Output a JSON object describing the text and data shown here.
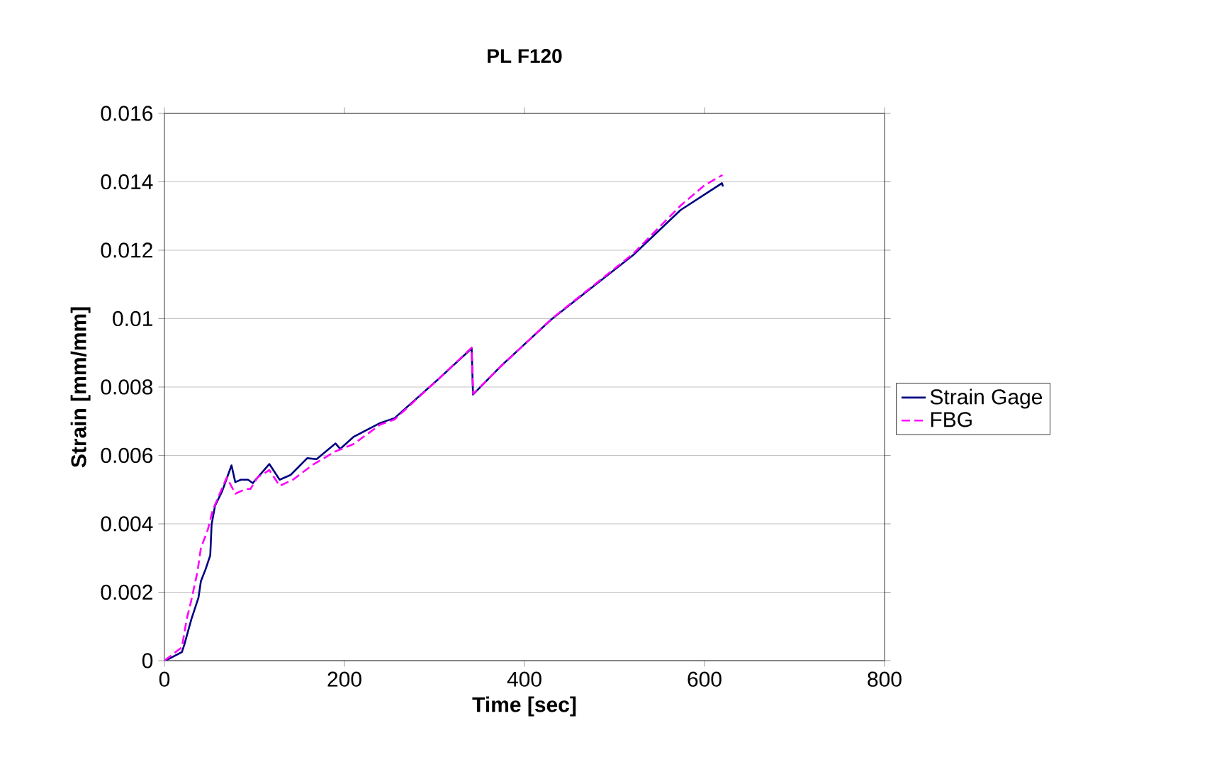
{
  "chart_data": {
    "type": "line",
    "title": "PL F120",
    "xlabel": "Time [sec]",
    "ylabel": "Strain [mm/mm]",
    "xlim": [
      0,
      800
    ],
    "ylim": [
      0,
      0.016
    ],
    "xticks": [
      0,
      200,
      400,
      600,
      800
    ],
    "yticks": [
      0,
      0.002,
      0.004,
      0.006,
      0.008,
      0.01,
      0.012,
      0.014,
      0.016
    ],
    "grid": "y",
    "legend": "right",
    "marker": "none",
    "series": [
      {
        "name": "Strain Gage",
        "color": "#000080",
        "line_style": "solid",
        "x": [
          0,
          1.1,
          19.4,
          22,
          29.9,
          37.8,
          40.5,
          45.7,
          50.9,
          52.4,
          56.2,
          64.1,
          74.5,
          78.7,
          85,
          92.9,
          98.1,
          116.5,
          128,
          140.2,
          158.6,
          169,
          190.1,
          195.3,
          209.9,
          239.8,
          255.6,
          305.5,
          341.3,
          342.8,
          373.7,
          430.4,
          520.8,
          573.2,
          619.4,
          620.5
        ],
        "values": [
          0,
          0,
          0.00025,
          0.00046,
          0.00121,
          0.00184,
          0.00232,
          0.00267,
          0.00308,
          0.00398,
          0.00453,
          0.00495,
          0.00571,
          0.00522,
          0.00529,
          0.00529,
          0.00519,
          0.00575,
          0.00529,
          0.00543,
          0.00592,
          0.00589,
          0.00635,
          0.00619,
          0.00654,
          0.00695,
          0.00709,
          0.00826,
          0.00913,
          0.00778,
          0.00861,
          0.00999,
          0.01186,
          0.01317,
          0.01396,
          0.01386
        ]
      },
      {
        "name": "FBG",
        "color": "#ff00ff",
        "line_style": "dashed",
        "x": [
          0,
          19.4,
          24.7,
          29.9,
          36.7,
          40.5,
          48.3,
          53.5,
          61.4,
          69.3,
          78.7,
          90.2,
          95.6,
          103.5,
          116.5,
          128,
          142.8,
          163.8,
          190.1,
          209.9,
          239.8,
          255.6,
          305.5,
          341.3,
          343,
          373.7,
          430.4,
          520.8,
          573.2,
          600,
          620
        ],
        "values": [
          0,
          0.00039,
          0.00121,
          0.00177,
          0.0026,
          0.00329,
          0.00384,
          0.00439,
          0.00488,
          0.00536,
          0.00488,
          0.00502,
          0.00502,
          0.00536,
          0.00557,
          0.00511,
          0.00529,
          0.00571,
          0.00612,
          0.00633,
          0.0069,
          0.00705,
          0.00826,
          0.00915,
          0.0078,
          0.0086,
          0.01,
          0.0119,
          0.0133,
          0.0139,
          0.0142
        ]
      }
    ]
  }
}
